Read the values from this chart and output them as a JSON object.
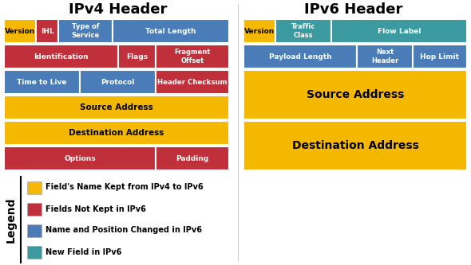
{
  "title_ipv4": "IPv4 Header",
  "title_ipv6": "IPv6 Header",
  "colors": {
    "yellow": "#F5B800",
    "red": "#C0303A",
    "blue": "#4A7DB8",
    "teal": "#3A9AA0",
    "white": "#FFFFFF",
    "black": "#000000",
    "bg": "#FFFFFF"
  },
  "legend": [
    {
      "color": "#F5B800",
      "text": "Field's Name Kept from IPv4 to IPv6"
    },
    {
      "color": "#C0303A",
      "text": "Fields Not Kept in IPv6"
    },
    {
      "color": "#4A7DB8",
      "text": "Name and Position Changed in IPv6"
    },
    {
      "color": "#3A9AA0",
      "text": "New Field in IPv6"
    }
  ]
}
